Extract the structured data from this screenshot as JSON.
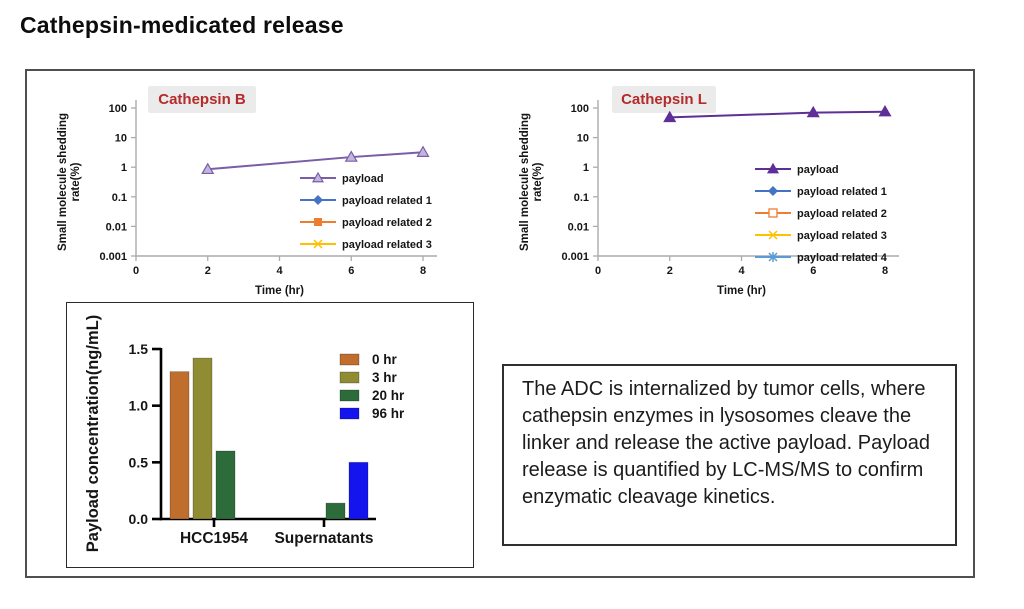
{
  "page": {
    "title": "Cathepsin-medicated release"
  },
  "description_box": {
    "text": "The ADC is internalized by tumor cells, where cathepsin enzymes in lysosomes cleave the linker and release the active payload. Payload release is quantified by LC-MS/MS to confirm enzymatic cleavage kinetics."
  },
  "chart_data": [
    {
      "id": "cathepsin-b",
      "type": "line",
      "title": "Cathepsin B",
      "title_color": "#B42B2B",
      "title_bg": "#EBEBEB",
      "xlabel": "Time (hr)",
      "ylabel": [
        "Small molecule shedding",
        "rate(%)"
      ],
      "y_scale": "log",
      "xlim": [
        0,
        8
      ],
      "ylim": [
        0.001,
        100
      ],
      "x_ticks": [
        0,
        2,
        4,
        6,
        8
      ],
      "y_ticks": [
        100,
        10,
        1,
        0.1,
        0.01,
        0.001
      ],
      "legend_position": "inside-right",
      "grid": false,
      "series": [
        {
          "name": "payload",
          "color": "#7A5CA8",
          "marker": "triangle-open",
          "marker_fill": "#C3B6DC",
          "x": [
            2,
            6,
            8
          ],
          "y": [
            0.85,
            2.2,
            3.2
          ]
        },
        {
          "name": "payload related 1",
          "color": "#4472C4",
          "marker": "diamond",
          "x": [],
          "y": []
        },
        {
          "name": "payload related 2",
          "color": "#ED7D31",
          "marker": "square",
          "x": [],
          "y": []
        },
        {
          "name": "payload related 3",
          "color": "#FFC000",
          "marker": "x",
          "x": [],
          "y": []
        }
      ]
    },
    {
      "id": "cathepsin-l",
      "type": "line",
      "title": "Cathepsin L",
      "title_color": "#B42B2B",
      "title_bg": "#EBEBEB",
      "xlabel": "Time (hr)",
      "ylabel": [
        "Small molecule shedding",
        "rate(%)"
      ],
      "y_scale": "log",
      "xlim": [
        0,
        8
      ],
      "ylim": [
        0.001,
        100
      ],
      "x_ticks": [
        0,
        2,
        4,
        6,
        8
      ],
      "y_ticks": [
        100,
        10,
        1,
        0.1,
        0.01,
        0.001
      ],
      "legend_position": "inside-right",
      "grid": false,
      "series": [
        {
          "name": "payload",
          "color": "#5E2F96",
          "marker": "triangle",
          "x": [
            2,
            6,
            8
          ],
          "y": [
            48,
            70,
            75
          ]
        },
        {
          "name": "payload related 1",
          "color": "#4472C4",
          "marker": "diamond",
          "x": [],
          "y": []
        },
        {
          "name": "payload related 2",
          "color": "#ED7D31",
          "marker": "square-open",
          "x": [],
          "y": []
        },
        {
          "name": "payload related 3",
          "color": "#FFC000",
          "marker": "x",
          "x": [],
          "y": []
        },
        {
          "name": "payload related 4",
          "color": "#5B9BD5",
          "marker": "asterisk",
          "x": [],
          "y": []
        }
      ]
    },
    {
      "id": "payload-concentration",
      "type": "bar",
      "title": "",
      "xlabel": "",
      "ylabel": "Payload concentration(ng/mL)",
      "categories": [
        "HCC1954",
        "Supernatants"
      ],
      "y_ticks": [
        0,
        0.5,
        1,
        1.5
      ],
      "ylim": [
        0,
        1.55
      ],
      "legend_position": "inside-top-right",
      "grid": false,
      "series": [
        {
          "name": "0 hr",
          "color": "#C06E2E",
          "values": [
            1.3,
            null
          ]
        },
        {
          "name": "3 hr",
          "color": "#8F8C33",
          "values": [
            1.42,
            null
          ]
        },
        {
          "name": "20 hr",
          "color": "#2D6B3B",
          "values": [
            0.6,
            0.14
          ]
        },
        {
          "name": "96 hr",
          "color": "#1414EE",
          "values": [
            null,
            0.5
          ]
        }
      ]
    }
  ]
}
